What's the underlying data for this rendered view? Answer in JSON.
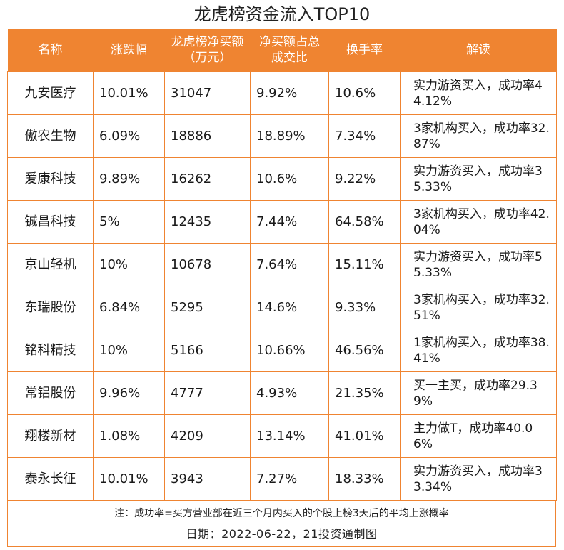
{
  "title": "龙虎榜资金流入TOP10",
  "headers": {
    "name": "名称",
    "change": "涨跌幅",
    "net_buy": "龙虎榜净买额（万元）",
    "net_ratio": "净买额占总成交比",
    "turnover": "换手率",
    "note": "解读"
  },
  "rows": [
    {
      "name": "九安医疗",
      "change": "10.01%",
      "net_buy": "31047",
      "net_ratio": "9.92%",
      "turnover": "10.6%",
      "note": "实力游资买入，成功率44.12%"
    },
    {
      "name": "傲农生物",
      "change": "6.09%",
      "net_buy": "18886",
      "net_ratio": "18.89%",
      "turnover": "7.34%",
      "note": "3家机构买入，成功率32.87%"
    },
    {
      "name": "爱康科技",
      "change": "9.89%",
      "net_buy": "16262",
      "net_ratio": "10.6%",
      "turnover": "9.22%",
      "note": "实力游资买入，成功率35.33%"
    },
    {
      "name": "铖昌科技",
      "change": "5%",
      "net_buy": "12435",
      "net_ratio": "7.44%",
      "turnover": "64.58%",
      "note": "3家机构买入，成功率42.04%"
    },
    {
      "name": "京山轻机",
      "change": "10%",
      "net_buy": "10678",
      "net_ratio": "7.64%",
      "turnover": "15.11%",
      "note": "实力游资买入，成功率55.33%"
    },
    {
      "name": "东瑞股份",
      "change": "6.84%",
      "net_buy": "5295",
      "net_ratio": "14.6%",
      "turnover": "9.33%",
      "note": "3家机构买入，成功率32.51%"
    },
    {
      "name": "铭科精技",
      "change": "10%",
      "net_buy": "5166",
      "net_ratio": "10.66%",
      "turnover": "46.56%",
      "note": "1家机构买入，成功率38.41%"
    },
    {
      "name": "常铝股份",
      "change": "9.96%",
      "net_buy": "4777",
      "net_ratio": "4.93%",
      "turnover": "21.35%",
      "note": "买一主买，成功率29.39%"
    },
    {
      "name": "翔楼新材",
      "change": "1.08%",
      "net_buy": "4209",
      "net_ratio": "13.14%",
      "turnover": "41.01%",
      "note": "主力做T，成功率40.06%"
    },
    {
      "name": "泰永长征",
      "change": "10.01%",
      "net_buy": "3943",
      "net_ratio": "7.27%",
      "turnover": "18.33%",
      "note": "实力游资买入，成功率33.34%"
    }
  ],
  "footer": {
    "note": "注：成功率=买方营业部在近三个月内买入的个股上榜3天后的平均上涨概率",
    "date": "日期：2022-06-22，21投资通制图"
  },
  "colors": {
    "accent": "#ef8431",
    "header_text": "#ffffff"
  }
}
